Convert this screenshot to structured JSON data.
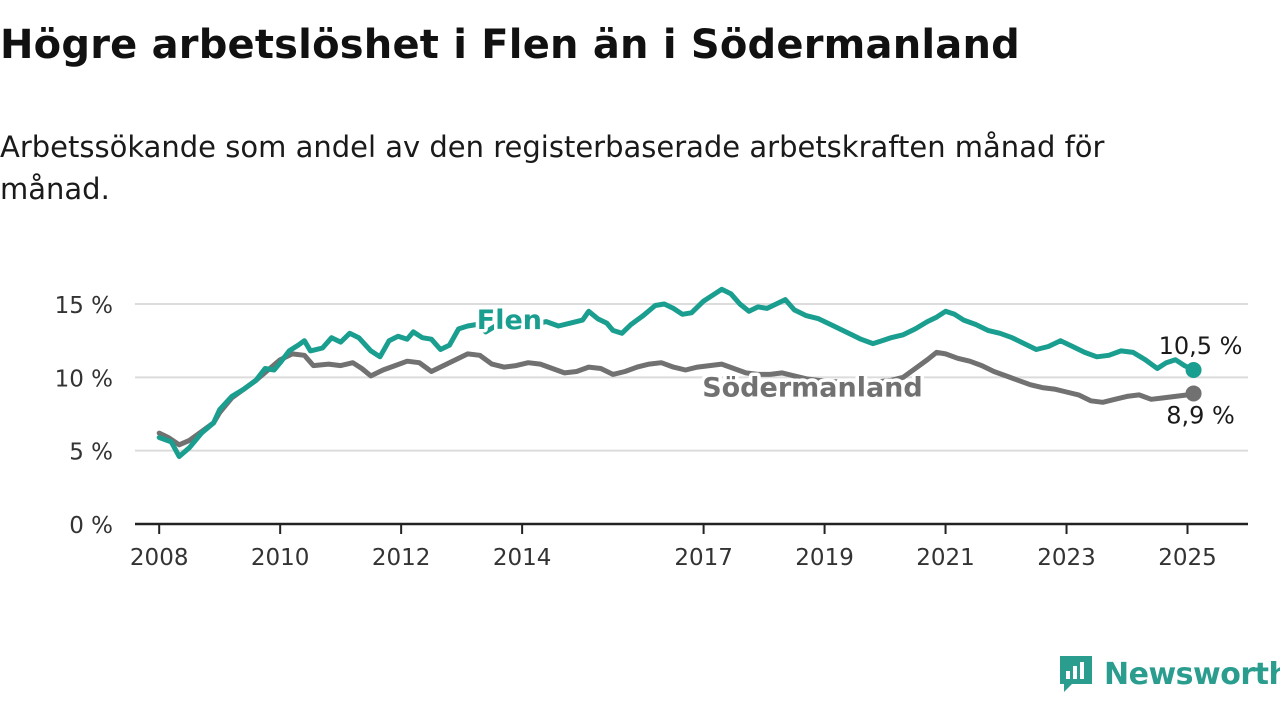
{
  "title": "Högre arbetslöshet i Flen än i Södermanland",
  "subtitle": "Arbetssökande som andel av den registerbaserade arbetskraften månad för månad.",
  "brand": {
    "name": "Newsworthy",
    "icon": "newsworthy-logo-icon"
  },
  "colors": {
    "flen": "#1a9e8f",
    "sodermanland": "#717171",
    "grid": "#dcdcdc",
    "axis": "#222222",
    "logo": "#2a9d8f"
  },
  "chart_data": {
    "type": "line",
    "title": "Högre arbetslöshet i Flen än i Södermanland",
    "xlabel": "",
    "ylabel": "",
    "xlim": [
      2007.6,
      2026.0
    ],
    "ylim": [
      0,
      15
    ],
    "grid": true,
    "x_ticks": [
      2008,
      2010,
      2012,
      2014,
      2017,
      2019,
      2021,
      2023,
      2025
    ],
    "y_ticks": [
      0,
      5,
      10,
      15
    ],
    "y_tick_labels": [
      "0 %",
      "5 %",
      "10 %",
      "15 %"
    ],
    "series": [
      {
        "name": "Flen",
        "color": "#1a9e8f",
        "end_label": "10,5 %",
        "points": [
          [
            2008.0,
            5.9
          ],
          [
            2008.2,
            5.6
          ],
          [
            2008.33,
            4.6
          ],
          [
            2008.5,
            5.2
          ],
          [
            2008.7,
            6.2
          ],
          [
            2008.9,
            6.9
          ],
          [
            2009.0,
            7.8
          ],
          [
            2009.2,
            8.7
          ],
          [
            2009.4,
            9.2
          ],
          [
            2009.6,
            9.8
          ],
          [
            2009.75,
            10.6
          ],
          [
            2009.9,
            10.5
          ],
          [
            2010.0,
            11.0
          ],
          [
            2010.15,
            11.8
          ],
          [
            2010.3,
            12.2
          ],
          [
            2010.4,
            12.5
          ],
          [
            2010.5,
            11.8
          ],
          [
            2010.7,
            12.0
          ],
          [
            2010.85,
            12.7
          ],
          [
            2011.0,
            12.4
          ],
          [
            2011.15,
            13.0
          ],
          [
            2011.3,
            12.7
          ],
          [
            2011.5,
            11.8
          ],
          [
            2011.65,
            11.4
          ],
          [
            2011.8,
            12.5
          ],
          [
            2011.95,
            12.8
          ],
          [
            2012.1,
            12.6
          ],
          [
            2012.2,
            13.1
          ],
          [
            2012.35,
            12.7
          ],
          [
            2012.5,
            12.6
          ],
          [
            2012.65,
            11.9
          ],
          [
            2012.8,
            12.2
          ],
          [
            2012.95,
            13.3
          ],
          [
            2013.1,
            13.5
          ],
          [
            2013.25,
            13.6
          ],
          [
            2013.4,
            13.1
          ],
          [
            2013.6,
            13.6
          ],
          [
            2013.8,
            13.7
          ],
          [
            2014.0,
            13.4
          ],
          [
            2014.2,
            13.6
          ],
          [
            2014.4,
            13.8
          ],
          [
            2014.6,
            13.5
          ],
          [
            2014.8,
            13.7
          ],
          [
            2015.0,
            13.9
          ],
          [
            2015.1,
            14.5
          ],
          [
            2015.25,
            14.0
          ],
          [
            2015.4,
            13.7
          ],
          [
            2015.5,
            13.2
          ],
          [
            2015.65,
            13.0
          ],
          [
            2015.8,
            13.6
          ],
          [
            2016.0,
            14.2
          ],
          [
            2016.2,
            14.9
          ],
          [
            2016.35,
            15.0
          ],
          [
            2016.5,
            14.7
          ],
          [
            2016.65,
            14.3
          ],
          [
            2016.8,
            14.4
          ],
          [
            2017.0,
            15.2
          ],
          [
            2017.15,
            15.6
          ],
          [
            2017.3,
            16.0
          ],
          [
            2017.45,
            15.7
          ],
          [
            2017.6,
            15.0
          ],
          [
            2017.75,
            14.5
          ],
          [
            2017.9,
            14.8
          ],
          [
            2018.05,
            14.7
          ],
          [
            2018.2,
            15.0
          ],
          [
            2018.35,
            15.3
          ],
          [
            2018.5,
            14.6
          ],
          [
            2018.7,
            14.2
          ],
          [
            2018.9,
            14.0
          ],
          [
            2019.1,
            13.6
          ],
          [
            2019.3,
            13.2
          ],
          [
            2019.45,
            12.9
          ],
          [
            2019.6,
            12.6
          ],
          [
            2019.8,
            12.3
          ],
          [
            2019.95,
            12.5
          ],
          [
            2020.1,
            12.7
          ],
          [
            2020.3,
            12.9
          ],
          [
            2020.5,
            13.3
          ],
          [
            2020.7,
            13.8
          ],
          [
            2020.85,
            14.1
          ],
          [
            2021.0,
            14.5
          ],
          [
            2021.15,
            14.3
          ],
          [
            2021.3,
            13.9
          ],
          [
            2021.5,
            13.6
          ],
          [
            2021.7,
            13.2
          ],
          [
            2021.9,
            13.0
          ],
          [
            2022.1,
            12.7
          ],
          [
            2022.3,
            12.3
          ],
          [
            2022.5,
            11.9
          ],
          [
            2022.7,
            12.1
          ],
          [
            2022.9,
            12.5
          ],
          [
            2023.1,
            12.1
          ],
          [
            2023.3,
            11.7
          ],
          [
            2023.5,
            11.4
          ],
          [
            2023.7,
            11.5
          ],
          [
            2023.9,
            11.8
          ],
          [
            2024.1,
            11.7
          ],
          [
            2024.3,
            11.2
          ],
          [
            2024.5,
            10.6
          ],
          [
            2024.65,
            11.0
          ],
          [
            2024.8,
            11.2
          ],
          [
            2024.95,
            10.8
          ],
          [
            2025.1,
            10.5
          ]
        ]
      },
      {
        "name": "Södermanland",
        "color": "#717171",
        "end_label": "8,9 %",
        "points": [
          [
            2008.0,
            6.2
          ],
          [
            2008.15,
            5.9
          ],
          [
            2008.33,
            5.4
          ],
          [
            2008.5,
            5.7
          ],
          [
            2008.7,
            6.3
          ],
          [
            2008.9,
            6.9
          ],
          [
            2009.0,
            7.6
          ],
          [
            2009.2,
            8.6
          ],
          [
            2009.4,
            9.2
          ],
          [
            2009.6,
            9.8
          ],
          [
            2009.8,
            10.5
          ],
          [
            2010.0,
            11.2
          ],
          [
            2010.2,
            11.6
          ],
          [
            2010.4,
            11.5
          ],
          [
            2010.55,
            10.8
          ],
          [
            2010.8,
            10.9
          ],
          [
            2011.0,
            10.8
          ],
          [
            2011.2,
            11.0
          ],
          [
            2011.35,
            10.6
          ],
          [
            2011.5,
            10.1
          ],
          [
            2011.7,
            10.5
          ],
          [
            2011.9,
            10.8
          ],
          [
            2012.1,
            11.1
          ],
          [
            2012.3,
            11.0
          ],
          [
            2012.5,
            10.4
          ],
          [
            2012.7,
            10.8
          ],
          [
            2012.9,
            11.2
          ],
          [
            2013.1,
            11.6
          ],
          [
            2013.3,
            11.5
          ],
          [
            2013.5,
            10.9
          ],
          [
            2013.7,
            10.7
          ],
          [
            2013.9,
            10.8
          ],
          [
            2014.1,
            11.0
          ],
          [
            2014.3,
            10.9
          ],
          [
            2014.5,
            10.6
          ],
          [
            2014.7,
            10.3
          ],
          [
            2014.9,
            10.4
          ],
          [
            2015.1,
            10.7
          ],
          [
            2015.3,
            10.6
          ],
          [
            2015.5,
            10.2
          ],
          [
            2015.7,
            10.4
          ],
          [
            2015.9,
            10.7
          ],
          [
            2016.1,
            10.9
          ],
          [
            2016.3,
            11.0
          ],
          [
            2016.5,
            10.7
          ],
          [
            2016.7,
            10.5
          ],
          [
            2016.9,
            10.7
          ],
          [
            2017.1,
            10.8
          ],
          [
            2017.3,
            10.9
          ],
          [
            2017.5,
            10.6
          ],
          [
            2017.7,
            10.3
          ],
          [
            2017.9,
            10.2
          ],
          [
            2018.1,
            10.2
          ],
          [
            2018.3,
            10.3
          ],
          [
            2018.5,
            10.1
          ],
          [
            2018.7,
            9.9
          ],
          [
            2018.9,
            9.8
          ],
          [
            2019.1,
            9.7
          ],
          [
            2019.3,
            9.7
          ],
          [
            2019.5,
            9.6
          ],
          [
            2019.7,
            9.6
          ],
          [
            2019.9,
            9.7
          ],
          [
            2020.1,
            9.8
          ],
          [
            2020.3,
            10.0
          ],
          [
            2020.5,
            10.6
          ],
          [
            2020.7,
            11.2
          ],
          [
            2020.85,
            11.7
          ],
          [
            2021.0,
            11.6
          ],
          [
            2021.2,
            11.3
          ],
          [
            2021.4,
            11.1
          ],
          [
            2021.6,
            10.8
          ],
          [
            2021.8,
            10.4
          ],
          [
            2022.0,
            10.1
          ],
          [
            2022.2,
            9.8
          ],
          [
            2022.4,
            9.5
          ],
          [
            2022.6,
            9.3
          ],
          [
            2022.8,
            9.2
          ],
          [
            2023.0,
            9.0
          ],
          [
            2023.2,
            8.8
          ],
          [
            2023.4,
            8.4
          ],
          [
            2023.6,
            8.3
          ],
          [
            2023.8,
            8.5
          ],
          [
            2024.0,
            8.7
          ],
          [
            2024.2,
            8.8
          ],
          [
            2024.4,
            8.5
          ],
          [
            2024.6,
            8.6
          ],
          [
            2024.8,
            8.7
          ],
          [
            2025.0,
            8.8
          ],
          [
            2025.1,
            8.9
          ]
        ]
      }
    ]
  }
}
